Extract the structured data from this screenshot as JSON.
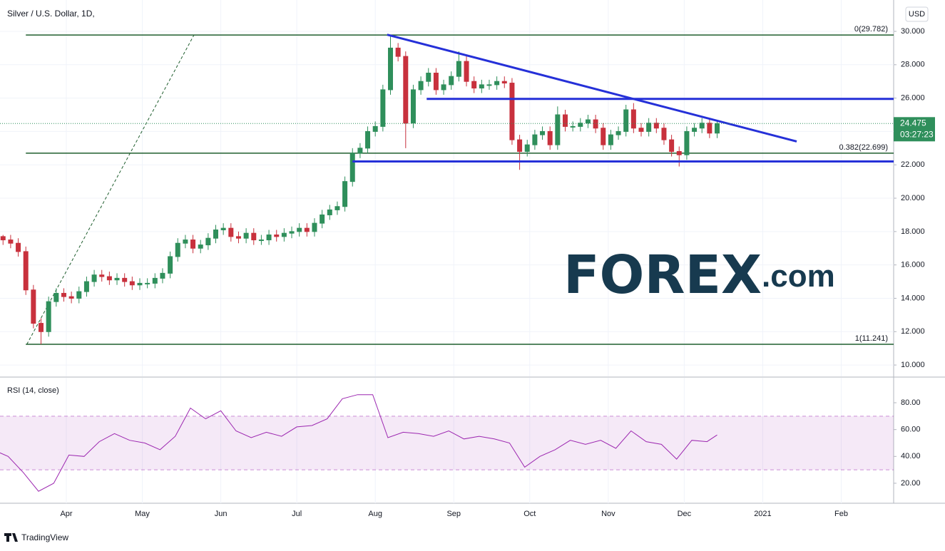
{
  "chart_data": {
    "type": "candlestick",
    "title": "Silver / U.S. Dollar, 1D,",
    "currency": "USD",
    "up_color": "#2f8f5b",
    "down_color": "#c8313d",
    "candles": {
      "x": [
        6,
        9,
        12,
        15,
        18,
        21,
        24,
        27,
        30,
        33,
        36,
        39,
        42,
        45,
        48,
        51,
        54,
        57,
        60,
        63,
        66,
        69,
        72,
        75,
        78,
        81,
        84,
        87,
        90,
        93,
        96,
        99,
        102,
        105,
        108,
        111,
        114,
        117,
        120,
        123,
        126,
        129,
        132,
        135,
        138,
        141,
        144,
        147,
        150,
        153,
        156,
        159,
        162,
        165,
        168,
        171,
        174,
        177,
        180,
        183,
        186,
        189,
        192,
        195,
        198,
        201,
        204,
        207,
        210,
        213,
        216,
        219,
        222,
        225,
        228,
        231,
        234,
        237,
        240,
        243,
        246,
        249,
        252,
        255,
        258,
        261,
        264,
        267,
        270,
        273,
        276,
        279,
        282,
        285,
        288
      ],
      "open": [
        17.7,
        17.5,
        17.3,
        16.8,
        14.5,
        12.5,
        12.0,
        13.8,
        14.3,
        14.1,
        14.0,
        14.4,
        15.0,
        15.4,
        15.3,
        15.1,
        15.2,
        15.0,
        14.8,
        14.9,
        14.9,
        15.2,
        15.5,
        16.5,
        17.3,
        17.5,
        17.0,
        17.2,
        17.6,
        18.1,
        18.2,
        17.7,
        17.6,
        17.9,
        17.5,
        17.5,
        17.8,
        17.7,
        17.9,
        18.0,
        18.2,
        18.0,
        18.5,
        19.0,
        19.3,
        19.5,
        21.0,
        22.7,
        23.0,
        24.0,
        24.3,
        26.5,
        29.0,
        28.5,
        24.5,
        26.5,
        27.0,
        27.5,
        26.5,
        26.8,
        27.3,
        28.2,
        27.0,
        26.6,
        26.8,
        26.8,
        27.0,
        26.9,
        23.5,
        22.8,
        23.2,
        23.8,
        24.0,
        23.2,
        25.0,
        24.3,
        24.3,
        24.5,
        24.7,
        24.2,
        23.2,
        23.8,
        24.0,
        25.3,
        24.2,
        24.0,
        24.5,
        24.2,
        23.5,
        22.8,
        22.6,
        24.0,
        24.2,
        24.5,
        23.9
      ],
      "high": [
        17.8,
        17.8,
        17.6,
        17.1,
        14.8,
        12.8,
        14.1,
        14.6,
        14.6,
        14.4,
        14.7,
        15.3,
        15.7,
        15.7,
        15.6,
        15.5,
        15.5,
        15.3,
        15.2,
        15.2,
        15.5,
        15.8,
        16.8,
        17.6,
        17.8,
        17.8,
        17.5,
        17.9,
        18.4,
        18.5,
        18.5,
        18.0,
        18.2,
        18.2,
        17.8,
        18.1,
        18.1,
        18.2,
        18.3,
        18.5,
        18.5,
        18.8,
        19.3,
        19.6,
        19.8,
        21.3,
        23.0,
        23.3,
        24.3,
        24.6,
        26.8,
        29.8,
        29.3,
        28.8,
        26.8,
        27.3,
        27.8,
        27.8,
        27.1,
        27.6,
        28.8,
        28.5,
        27.3,
        27.1,
        27.1,
        27.3,
        27.3,
        27.2,
        23.8,
        23.5,
        24.1,
        24.3,
        24.3,
        25.5,
        25.3,
        24.6,
        24.8,
        25.0,
        25.0,
        24.5,
        24.1,
        24.3,
        25.6,
        25.7,
        24.5,
        24.8,
        24.8,
        24.5,
        23.8,
        23.1,
        24.3,
        24.5,
        24.8,
        24.8,
        24.7
      ],
      "low": [
        17.2,
        17.0,
        16.5,
        14.2,
        12.2,
        11.24,
        11.7,
        13.5,
        13.8,
        13.7,
        13.7,
        14.1,
        14.7,
        15.0,
        14.8,
        14.8,
        14.7,
        14.5,
        14.5,
        14.6,
        14.6,
        14.9,
        15.2,
        16.2,
        17.0,
        16.7,
        16.7,
        16.9,
        17.3,
        17.8,
        17.4,
        17.3,
        17.3,
        17.2,
        17.2,
        17.2,
        17.4,
        17.4,
        17.6,
        17.7,
        17.7,
        17.7,
        18.2,
        18.7,
        19.0,
        19.2,
        20.7,
        22.4,
        22.7,
        23.7,
        24.0,
        26.2,
        28.2,
        23.0,
        24.2,
        26.2,
        26.7,
        26.2,
        26.2,
        26.5,
        27.0,
        26.7,
        26.3,
        26.3,
        26.5,
        26.5,
        26.6,
        23.2,
        21.7,
        22.5,
        22.9,
        23.5,
        22.9,
        22.9,
        24.0,
        24.0,
        24.0,
        24.2,
        23.9,
        22.9,
        22.9,
        23.5,
        23.7,
        23.9,
        23.7,
        23.7,
        23.9,
        23.2,
        22.5,
        21.9,
        22.3,
        23.7,
        23.9,
        23.6,
        23.6
      ],
      "close": [
        17.5,
        17.3,
        16.8,
        14.5,
        12.5,
        12.0,
        13.8,
        14.3,
        14.1,
        14.0,
        14.4,
        15.0,
        15.4,
        15.3,
        15.1,
        15.2,
        15.0,
        14.8,
        14.9,
        14.9,
        15.2,
        15.5,
        16.5,
        17.3,
        17.5,
        17.0,
        17.2,
        17.6,
        18.1,
        18.2,
        17.7,
        17.6,
        17.9,
        17.5,
        17.5,
        17.8,
        17.7,
        17.9,
        18.0,
        18.2,
        18.0,
        18.5,
        19.0,
        19.3,
        19.5,
        21.0,
        22.7,
        23.0,
        24.0,
        24.3,
        26.5,
        29.0,
        28.5,
        24.5,
        26.5,
        27.0,
        27.5,
        26.5,
        26.8,
        27.3,
        28.2,
        27.0,
        26.6,
        26.8,
        26.8,
        27.0,
        26.9,
        23.5,
        22.8,
        23.2,
        23.8,
        24.0,
        23.2,
        25.0,
        24.3,
        24.3,
        24.5,
        24.7,
        24.2,
        23.2,
        23.8,
        24.0,
        25.3,
        24.2,
        24.0,
        24.5,
        24.2,
        23.5,
        22.8,
        22.6,
        24.0,
        24.2,
        24.5,
        23.9,
        24.475
      ]
    },
    "last_price": {
      "value": 24.475,
      "label": "24.475"
    },
    "countdown": "03:27:23",
    "xlim": [
      4.8,
      357.7
    ],
    "xticks": [
      {
        "value": 31,
        "label": "Apr"
      },
      {
        "value": 61,
        "label": "May"
      },
      {
        "value": 92,
        "label": "Jun"
      },
      {
        "value": 122,
        "label": "Jul"
      },
      {
        "value": 153,
        "label": "Aug"
      },
      {
        "value": 184,
        "label": "Sep"
      },
      {
        "value": 214,
        "label": "Oct"
      },
      {
        "value": 245,
        "label": "Nov"
      },
      {
        "value": 275,
        "label": "Dec"
      },
      {
        "value": 306,
        "label": "2021"
      },
      {
        "value": 337,
        "label": "Feb"
      }
    ],
    "ylim": [
      9.32,
      31.88
    ],
    "yticks": [
      {
        "value": 10,
        "label": "10.000"
      },
      {
        "value": 12,
        "label": "12.000"
      },
      {
        "value": 14,
        "label": "14.000"
      },
      {
        "value": 16,
        "label": "16.000"
      },
      {
        "value": 18,
        "label": "18.000"
      },
      {
        "value": 20,
        "label": "20.000"
      },
      {
        "value": 22,
        "label": "22.000"
      },
      {
        "value": 24,
        "label": "24.000"
      },
      {
        "value": 26,
        "label": "26.000"
      },
      {
        "value": 28,
        "label": "28.000"
      },
      {
        "value": 30,
        "label": "30.000"
      }
    ],
    "grid": true,
    "fib": {
      "color": "#1f5e2e",
      "x_start": 15,
      "levels": [
        {
          "value": 29.782,
          "label": "0(29.782)"
        },
        {
          "value": 22.699,
          "label": "0.382(22.699)"
        },
        {
          "value": 11.241,
          "label": "1(11.241)"
        }
      ],
      "trend": {
        "x": [
          15.4,
          81.4
        ],
        "y": [
          11.241,
          29.782
        ]
      }
    },
    "lines": [
      {
        "color": "#2530d8",
        "x": [
          157.7,
          319.4
        ],
        "y": [
          29.8,
          23.4
        ]
      },
      {
        "color": "#2530d8",
        "x": [
          173.3,
          357.7
        ],
        "y": [
          25.95,
          25.95
        ]
      },
      {
        "color": "#2530d8",
        "x": [
          144,
          357.7
        ],
        "y": [
          22.2,
          22.2
        ]
      }
    ],
    "rsi": {
      "title": "RSI (14, close)",
      "color": "#9c27b0",
      "band": [
        30,
        70
      ],
      "ylim": [
        5.1,
        98.6
      ],
      "yticks": [
        {
          "value": 20,
          "label": "20.00"
        },
        {
          "value": 40,
          "label": "40.00"
        },
        {
          "value": 60,
          "label": "60.00"
        },
        {
          "value": 80,
          "label": "80.00"
        }
      ],
      "x": [
        2,
        8,
        14,
        20,
        26,
        32,
        38,
        44,
        50,
        56,
        62,
        68,
        74,
        80,
        86,
        92,
        98,
        104,
        110,
        116,
        122,
        128,
        134,
        140,
        146,
        152,
        158,
        164,
        170,
        176,
        182,
        188,
        194,
        200,
        206,
        212,
        218,
        224,
        230,
        236,
        242,
        248,
        254,
        260,
        266,
        272,
        278,
        284,
        288
      ],
      "values": [
        45,
        40,
        28,
        14,
        20,
        41,
        40,
        51,
        57,
        52,
        50,
        45,
        55,
        76,
        68,
        74,
        59,
        54,
        58,
        55,
        62,
        63,
        68,
        83,
        86,
        86,
        54,
        58,
        57,
        55,
        59,
        53,
        55,
        53,
        50,
        32,
        40,
        45,
        52,
        49,
        52,
        46,
        59,
        51,
        49,
        38,
        52,
        51,
        56
      ]
    },
    "watermark": {
      "main": "FOREX",
      "suffix": ".com"
    },
    "brand": "TradingView"
  }
}
